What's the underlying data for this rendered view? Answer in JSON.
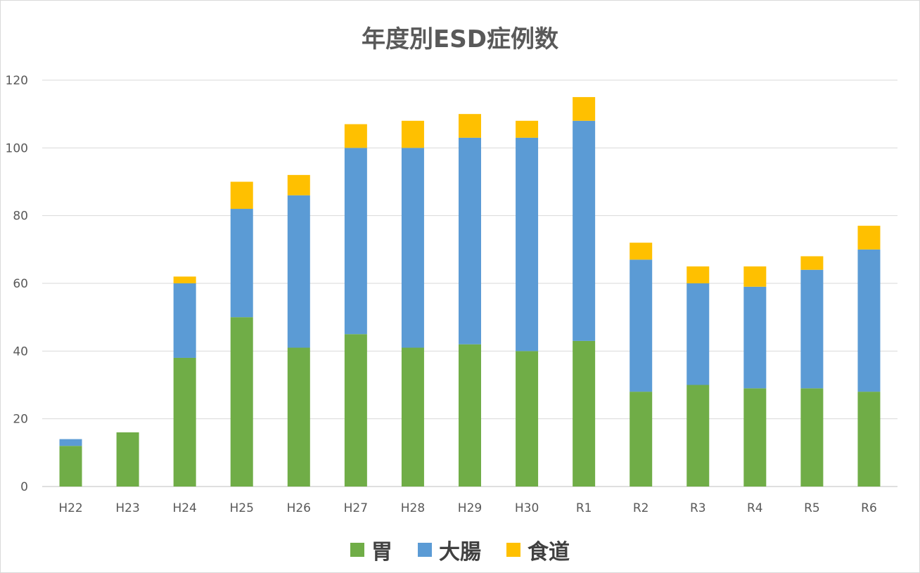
{
  "chart_data": {
    "type": "bar",
    "stacked": true,
    "title": "年度別ESD症例数",
    "categories": [
      "H22",
      "H23",
      "H24",
      "H25",
      "H26",
      "H27",
      "H28",
      "H29",
      "H30",
      "R1",
      "R2",
      "R3",
      "R4",
      "R5",
      "R6"
    ],
    "series": [
      {
        "name": "胃",
        "color": "#70ad47",
        "values": [
          12,
          16,
          38,
          50,
          41,
          45,
          41,
          42,
          40,
          43,
          28,
          30,
          29,
          29,
          28
        ]
      },
      {
        "name": "大腸",
        "color": "#5b9bd5",
        "values": [
          2,
          0,
          22,
          32,
          45,
          55,
          59,
          61,
          63,
          65,
          39,
          30,
          30,
          35,
          42
        ]
      },
      {
        "name": "食道",
        "color": "#ffc000",
        "values": [
          0,
          0,
          2,
          8,
          6,
          7,
          8,
          7,
          5,
          7,
          5,
          5,
          6,
          4,
          7
        ]
      }
    ],
    "ylim": [
      0,
      120
    ],
    "yticks": [
      "0",
      "20",
      "40",
      "60",
      "80",
      "100",
      "120"
    ],
    "grid": true,
    "legend_position": "bottom"
  }
}
